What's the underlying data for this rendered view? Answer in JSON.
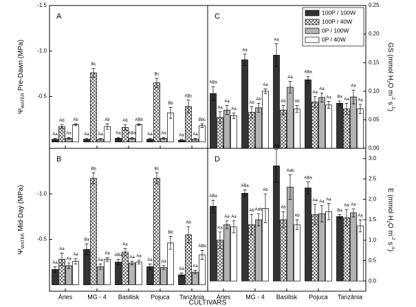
{
  "x_axis": {
    "label": "CULTIVARS",
    "categories": [
      "Áries",
      "MG - 4",
      "Basilisk",
      "Pojuca",
      "Tanzânia"
    ]
  },
  "series_styles": [
    {
      "name": "100P / 100W",
      "color": "#333333"
    },
    {
      "name": "100P / 40W",
      "color": "#ffffff",
      "hatch": "crosshatch"
    },
    {
      "name": "0P / 100W",
      "color": "#b3b3b3"
    },
    {
      "name": "0P / 40W",
      "color": "#ffffff"
    }
  ],
  "chart_data": [
    {
      "type": "bar",
      "label": "A",
      "y_label": [
        "Ψ",
        "WATER",
        " Pre-Dawn (MPa)"
      ],
      "y_side": "left",
      "ylim": [
        0.07,
        -1.5
      ],
      "yticks": [
        -1.5,
        {
          "value": -1,
          "label": "-1.0"
        },
        -0.5
      ],
      "series": [
        {
          "values": [
            -0.03,
            -0.03,
            -0.04,
            -0.03,
            -0.02
          ],
          "errors": [
            0.01,
            0.01,
            0.01,
            0.01,
            0.01
          ],
          "annotations": [
            "Aa",
            "Aa",
            "Aa",
            "Aa",
            "Aa"
          ]
        },
        {
          "values": [
            -0.17,
            -0.76,
            -0.16,
            -0.65,
            -0.39
          ],
          "errors": [
            0.02,
            0.05,
            0.03,
            0.05,
            0.07
          ],
          "annotations": [
            "Ab",
            "Bc",
            "Ab",
            "Bc",
            "ABc"
          ]
        },
        {
          "values": [
            -0.04,
            -0.03,
            -0.04,
            -0.04,
            -0.03
          ],
          "errors": [
            0.01,
            0.01,
            0.01,
            0.01,
            0.01
          ],
          "annotations": [
            "Aa",
            "Aa",
            "ABa",
            "Aa",
            "Aa"
          ]
        },
        {
          "values": [
            -0.19,
            -0.17,
            -0.19,
            -0.32,
            -0.18
          ],
          "errors": [
            0.01,
            0.03,
            0.01,
            0.06,
            0.02
          ],
          "annotations": [
            "Ab",
            "Ab",
            "ABb",
            "Bb",
            "Bbc"
          ]
        }
      ]
    },
    {
      "type": "bar",
      "label": "C",
      "y_label": [
        "GS (mmol H",
        "2",
        "O m",
        "-2",
        " s",
        "-1",
        ")"
      ],
      "y_side": "right",
      "legend": "upper right",
      "ylim": [
        0,
        0.25
      ],
      "yticks": [
        {
          "value": 0,
          "label": "0.00"
        },
        0.05,
        {
          "value": 0.1,
          "label": "0.10"
        },
        0.15,
        {
          "value": 0.2,
          "label": "0.20"
        },
        0.25
      ],
      "series": [
        {
          "values": [
            0.096,
            0.155,
            0.163,
            0.12,
            0.079
          ],
          "errors": [
            0.012,
            0.01,
            0.02,
            0.006,
            0.004
          ],
          "annotations": [
            "ABa",
            "Aa",
            "Aa",
            "ABa",
            "Ba"
          ]
        },
        {
          "values": [
            0.054,
            0.063,
            0.067,
            0.081,
            0.069
          ],
          "errors": [
            0.01,
            0.01,
            0.008,
            0.01,
            0.01
          ],
          "annotations": [
            "Aa",
            "Ab",
            "Ab",
            "Aa",
            "Aa"
          ]
        },
        {
          "values": [
            0.067,
            0.071,
            0.107,
            0.089,
            0.09
          ],
          "errors": [
            0.008,
            0.008,
            0.01,
            0.008,
            0.012
          ],
          "annotations": [
            "Aa",
            "Ab",
            "Aa",
            "Aa",
            "Aa"
          ]
        },
        {
          "values": [
            0.057,
            0.1,
            0.069,
            0.076,
            0.069
          ],
          "errors": [
            0.005,
            0.004,
            0.006,
            0.006,
            0.008
          ],
          "annotations": [
            "Aa",
            "Aa",
            "Ab",
            "Aa",
            "Aa"
          ]
        }
      ]
    },
    {
      "type": "bar",
      "label": "B",
      "y_label": [
        "Ψ",
        "WATER",
        " Mid-Day (MPa)"
      ],
      "y_side": "left",
      "ylim": [
        0.07,
        -1.5
      ],
      "yticks": [
        {
          "value": -1,
          "label": "-1.0"
        },
        -0.5
      ],
      "series": [
        {
          "values": [
            -0.17,
            -0.39,
            -0.25,
            -0.2,
            -0.11
          ],
          "errors": [
            0.03,
            0.06,
            0.03,
            0.03,
            0.02
          ],
          "annotations": [
            "Aa",
            "Ba",
            "ABa",
            "Aa",
            "Aa"
          ]
        },
        {
          "values": [
            -0.28,
            -1.17,
            -0.36,
            -1.17,
            -0.55
          ],
          "errors": [
            0.07,
            0.06,
            0.04,
            0.06,
            0.09
          ],
          "annotations": [
            "Aa",
            "Bb",
            "Aa",
            "Bc",
            "Ab"
          ]
        },
        {
          "values": [
            -0.21,
            -0.2,
            -0.24,
            -0.19,
            -0.14
          ],
          "errors": [
            0.03,
            0.03,
            0.02,
            0.02,
            0.02
          ],
          "annotations": [
            "Aa",
            "Aa",
            "Aa",
            "Aa",
            "Aa"
          ]
        },
        {
          "values": [
            -0.26,
            -0.28,
            -0.25,
            -0.46,
            -0.33
          ],
          "errors": [
            0.03,
            0.02,
            0.02,
            0.07,
            0.05
          ],
          "annotations": [
            "Aa",
            "Aa",
            "Aa",
            "Bb",
            "ABb"
          ]
        }
      ]
    },
    {
      "type": "bar",
      "label": "D",
      "y_label": [
        "E (mmol H",
        "2",
        "O m",
        "-2",
        " s",
        "-1",
        ")"
      ],
      "y_side": "right",
      "ylim": [
        -0.25,
        3.25
      ],
      "yticks": [
        {
          "value": 0,
          "label": "0.0"
        },
        0.5,
        {
          "value": 1,
          "label": "1.0"
        },
        1.5,
        {
          "value": 2,
          "label": "2.0"
        },
        2.5,
        {
          "value": 3,
          "label": "3.0"
        }
      ],
      "series": [
        {
          "values": [
            1.83,
            2.15,
            2.82,
            2.28,
            1.58
          ],
          "errors": [
            0.15,
            0.08,
            0.4,
            0.15,
            0.05
          ],
          "annotations": [
            "ABa",
            "ABa",
            "Aa",
            "ABa",
            "Ba"
          ]
        },
        {
          "values": [
            1.0,
            1.38,
            1.5,
            1.63,
            1.55
          ],
          "errors": [
            0.2,
            0.25,
            0.2,
            0.25,
            0.2
          ],
          "annotations": [
            "Aa",
            "Ab",
            "Ab",
            "Aa",
            "Aa"
          ]
        },
        {
          "values": [
            1.38,
            1.5,
            2.3,
            1.65,
            1.67
          ],
          "errors": [
            0.1,
            0.15,
            0.3,
            0.2,
            0.1
          ],
          "annotations": [
            "Aa",
            "Aab",
            "Aab",
            "Aa",
            "Aa"
          ]
        },
        {
          "values": [
            1.33,
            1.78,
            1.38,
            1.7,
            1.35
          ],
          "errors": [
            0.15,
            0.35,
            0.12,
            0.2,
            0.15
          ],
          "annotations": [
            "Aa",
            "Ab",
            "Ab",
            "Aa",
            "Aa"
          ]
        }
      ]
    }
  ]
}
